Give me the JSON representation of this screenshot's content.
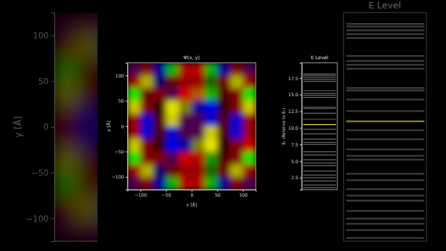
{
  "chart_data": [
    {
      "type": "heatmap",
      "title": "Ψ(x, y)",
      "x_label": "x [Å]",
      "y_label": "y [Å]",
      "xlim": [
        -125,
        125
      ],
      "ylim": [
        -125,
        125
      ],
      "xticks": [
        {
          "value": -100,
          "label": "−100"
        },
        {
          "value": -50,
          "label": "−50"
        },
        0,
        50,
        100
      ],
      "yticks": [
        {
          "value": -100,
          "label": "−100"
        },
        {
          "value": -50,
          "label": "−50"
        },
        0,
        50,
        100
      ],
      "x": [
        -112.5,
        -87.5,
        -62.5,
        -37.5,
        -12.5,
        12.5,
        37.5,
        62.5,
        87.5,
        112.5
      ],
      "y": [
        112.5,
        87.5,
        62.5,
        37.5,
        12.5,
        -12.5,
        -37.5,
        -62.5,
        -87.5,
        -112.5
      ],
      "amplitude": [
        [
          0.3,
          0.5,
          0.6,
          0.7,
          0.7,
          0.7,
          0.7,
          0.6,
          0.5,
          0.3
        ],
        [
          0.6,
          0.7,
          0.4,
          0.4,
          0.6,
          0.6,
          0.4,
          0.4,
          0.7,
          0.6
        ],
        [
          0.9,
          0.4,
          0.5,
          0.3,
          0.8,
          0.7,
          0.7,
          0.3,
          0.5,
          0.9
        ],
        [
          0.8,
          0.5,
          0.2,
          0.9,
          0.5,
          0.6,
          0.9,
          0.2,
          0.5,
          0.8
        ],
        [
          0.6,
          0.8,
          0.3,
          0.8,
          0.3,
          0.3,
          0.8,
          0.3,
          0.8,
          0.6
        ],
        [
          0.6,
          0.8,
          0.3,
          0.8,
          0.3,
          0.3,
          0.8,
          0.3,
          0.8,
          0.6
        ],
        [
          0.8,
          0.5,
          0.2,
          0.9,
          0.6,
          0.5,
          0.9,
          0.2,
          0.5,
          0.8
        ],
        [
          0.9,
          0.5,
          0.5,
          0.3,
          0.8,
          0.7,
          0.6,
          0.3,
          0.5,
          0.9
        ],
        [
          0.6,
          0.7,
          0.4,
          0.4,
          0.6,
          0.6,
          0.4,
          0.4,
          0.7,
          0.6
        ],
        [
          0.3,
          0.5,
          0.6,
          0.7,
          0.7,
          0.7,
          0.7,
          0.6,
          0.5,
          0.3
        ]
      ],
      "phase": [
        [
          300,
          0,
          240,
          120,
          0,
          0,
          120,
          240,
          0,
          300
        ],
        [
          0,
          60,
          240,
          0,
          0,
          0,
          120,
          0,
          60,
          0
        ],
        [
          120,
          0,
          0,
          300,
          0,
          30,
          120,
          0,
          0,
          120
        ],
        [
          60,
          0,
          0,
          60,
          60,
          240,
          240,
          0,
          0,
          60
        ],
        [
          0,
          240,
          0,
          60,
          300,
          300,
          240,
          0,
          240,
          0
        ],
        [
          0,
          240,
          0,
          240,
          300,
          300,
          60,
          0,
          240,
          0
        ],
        [
          60,
          0,
          0,
          240,
          240,
          60,
          60,
          0,
          0,
          0
        ],
        [
          120,
          0,
          0,
          300,
          0,
          0,
          120,
          0,
          0,
          120
        ],
        [
          0,
          60,
          240,
          0,
          0,
          0,
          120,
          0,
          60,
          0
        ],
        [
          300,
          0,
          240,
          120,
          0,
          0,
          120,
          240,
          0,
          300
        ]
      ]
    },
    {
      "type": "levels",
      "title": "E Level",
      "y_label": "Eₙ (Relative to Eₑ)",
      "ylim": [
        0.7,
        19.8
      ],
      "yticks": [
        2.5,
        {
          "value": 5,
          "label": "5.0"
        },
        7.5,
        {
          "value": 10,
          "label": "10.0"
        },
        12.5,
        {
          "value": 15,
          "label": "15.0"
        },
        17.5
      ],
      "tick_labels": "y",
      "values": [
        1.0,
        1.4,
        2.0,
        2.5,
        2.9,
        3.5,
        4.3,
        4.7,
        5.2,
        5.9,
        6.4,
        7.5,
        7.8,
        8.3,
        9.1,
        9.8,
        10.5,
        11.3,
        12.2,
        12.9,
        13.1,
        14.6,
        14.9,
        15.2,
        15.6,
        17.0,
        17.3,
        17.6,
        17.9,
        18.1
      ],
      "colors": [
        "#6a6a6a",
        "#6a6a6a",
        "#6a6a6a",
        "#6a6a6a",
        "#6a6a6a",
        "#6a6a6a",
        "#6a6a6a",
        "#6a6a6a",
        "#6a6a6a",
        "#6a6a6a",
        "#6a6a6a",
        "#6a6a6a",
        "#6a6a6a",
        "#6a6a6a",
        "#6a6a6a",
        "#6a6a6a",
        "#f2e05a",
        "#6a6a6a",
        "#6a6a6a",
        "#6a6a6a",
        "#6a6a6a",
        "#6a6a6a",
        "#6a6a6a",
        "#6a6a6a",
        "#6a6a6a",
        "#6a6a6a",
        "#6a6a6a",
        "#6a6a6a",
        "#6a6a6a",
        "#6a6a6a"
      ]
    }
  ]
}
